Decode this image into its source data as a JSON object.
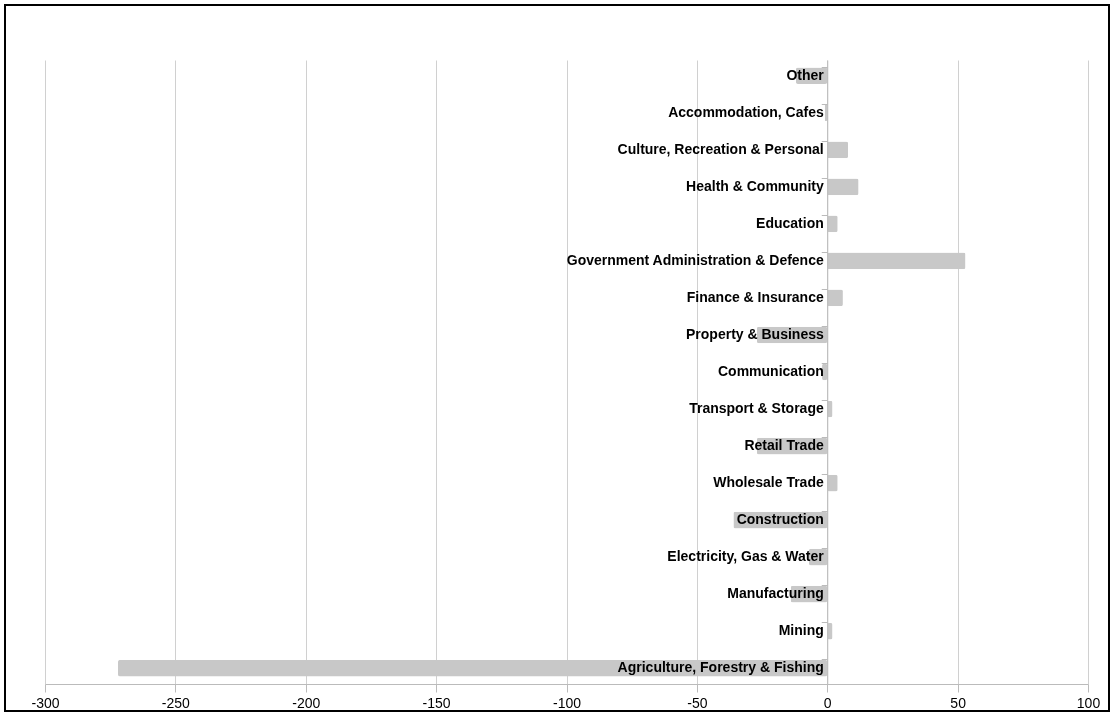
{
  "chart_data": {
    "type": "bar",
    "orientation": "horizontal",
    "categories": [
      "Other",
      "Accommodation, Cafes",
      "Culture, Recreation & Personal",
      "Health & Community",
      "Education",
      "Government Administration & Defence",
      "Finance & Insurance",
      "Property & Business",
      "Communication",
      "Transport & Storage",
      "Retail Trade",
      "Wholesale Trade",
      "Construction",
      "Electricity, Gas & Water",
      "Manufacturing",
      "Mining",
      "Agriculture, Forestry & Fishing"
    ],
    "values": [
      -12,
      -1,
      8,
      12,
      4,
      53,
      6,
      -27,
      -2,
      2,
      -27,
      4,
      -36,
      -7,
      -14,
      2,
      -272
    ],
    "color": "#c8c8c8",
    "xlim": [
      -300,
      100
    ],
    "xticks": [
      -300,
      -250,
      -200,
      -150,
      -100,
      -50,
      0,
      50,
      100
    ],
    "grid": "x"
  }
}
